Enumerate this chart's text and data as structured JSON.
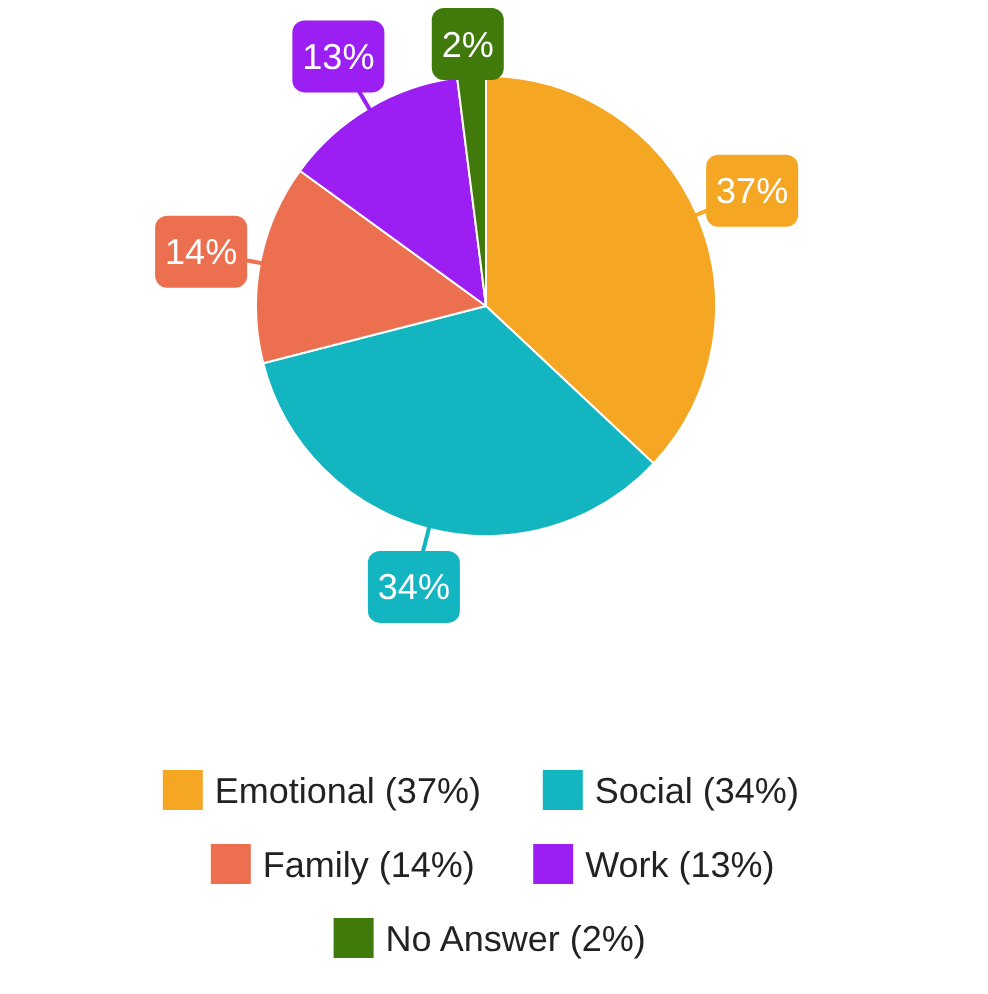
{
  "chart_data": {
    "type": "pie",
    "categories": [
      "Emotional (37%)",
      "Social (34%)",
      "Family (14%)",
      "Work (13%)",
      "No Answer (2%)"
    ],
    "values": [
      37,
      34,
      14,
      13,
      2
    ],
    "colors": [
      "#f5a623",
      "#13b5c1",
      "#ec6f4f",
      "#9b1ff2",
      "#3f7a0a"
    ],
    "value_labels": [
      "37%",
      "34%",
      "14%",
      "13%",
      "2%"
    ],
    "legend": "bottom"
  }
}
